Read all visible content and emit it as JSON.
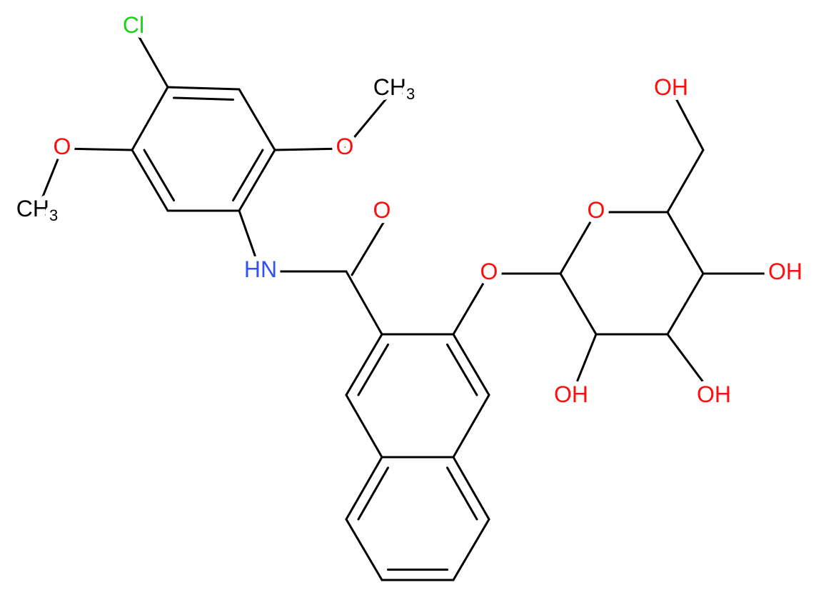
{
  "atoms": [
    {
      "text": "Cl"
    },
    {
      "text": "O"
    },
    {
      "text": "CH",
      "sub": "3"
    },
    {
      "text": "O"
    },
    {
      "text": "CH",
      "sub": "3"
    },
    {
      "text": "HN"
    },
    {
      "text": "O"
    },
    {
      "text": "O"
    },
    {
      "text": "O"
    },
    {
      "text": "OH"
    },
    {
      "text": "OH"
    },
    {
      "text": "OH"
    },
    {
      "text": "OH"
    }
  ]
}
